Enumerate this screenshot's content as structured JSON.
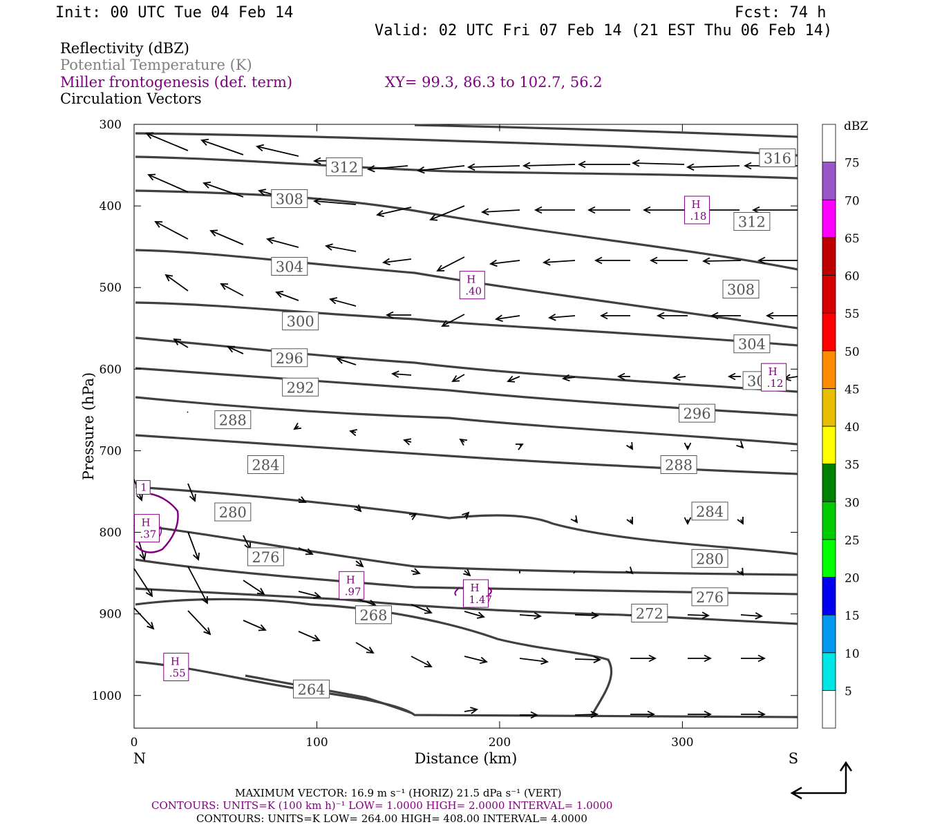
{
  "header": {
    "init": "Init: 00 UTC Tue 04 Feb 14",
    "fcst": "Fcst:   74 h",
    "valid": "Valid: 02 UTC Fri 07 Feb 14 (21 EST Thu 06 Feb 14)"
  },
  "fields": {
    "reflectivity": "Reflectivity (dBZ)",
    "theta": "Potential Temperature (K)",
    "miller": "Miller frontogenesis (def. term)",
    "xy": "XY=  99.3, 86.3 to 102.7, 56.2",
    "vectors": "Circulation Vectors"
  },
  "colors": {
    "theta": "#404040",
    "miller": "#800080",
    "vectors": "#000000"
  },
  "chart_data": {
    "type": "cross-section",
    "xlabel": "Distance (km)",
    "ylabel": "Pressure (hPa)",
    "xlim": [
      0,
      363
    ],
    "ylim": [
      1040,
      300
    ],
    "x_ticks": [
      0,
      100,
      200,
      300
    ],
    "y_ticks": [
      300,
      400,
      500,
      600,
      700,
      800,
      900,
      1000
    ],
    "left_end": "N",
    "right_end": "S",
    "theta_contours": [
      {
        "value": 316,
        "label_at": [
          352,
          341
        ]
      },
      {
        "value": 312,
        "label_at": [
          115,
          352
        ],
        "label2_at": [
          338,
          419
        ]
      },
      {
        "value": 308,
        "label_at": [
          85,
          391
        ],
        "label2_at": [
          332,
          502
        ]
      },
      {
        "value": 304,
        "label_at": [
          85,
          474
        ],
        "label2_at": [
          338,
          569
        ]
      },
      {
        "value": 300,
        "label_at": [
          91,
          541
        ],
        "label2_at": [
          343,
          614
        ]
      },
      {
        "value": 296,
        "label_at": [
          85,
          586
        ],
        "label2_at": [
          308,
          654
        ]
      },
      {
        "value": 292,
        "label_at": [
          91,
          622
        ]
      },
      {
        "value": 288,
        "label_at": [
          54,
          662
        ],
        "label2_at": [
          298,
          717
        ]
      },
      {
        "value": 284,
        "label_at": [
          72,
          717
        ],
        "label2_at": [
          315,
          774
        ]
      },
      {
        "value": 280,
        "label_at": [
          54,
          775
        ],
        "label2_at": [
          315,
          832
        ]
      },
      {
        "value": 276,
        "label_at": [
          72,
          830
        ],
        "label2_at": [
          315,
          879
        ]
      },
      {
        "value": 272,
        "label_at": [
          282,
          899
        ]
      },
      {
        "value": 268,
        "label_at": [
          131,
          901
        ]
      },
      {
        "value": 264,
        "label_at": [
          97,
          992
        ]
      }
    ],
    "frontogenesis_maxima": [
      {
        "label": "H",
        "value": ".18",
        "x": 308,
        "p": 405
      },
      {
        "label": "H",
        "value": ".40",
        "x": 185,
        "p": 497
      },
      {
        "label": "H",
        "value": ".12",
        "x": 350,
        "p": 610
      },
      {
        "label": "H",
        "value": ".37",
        "x": 7,
        "p": 795
      },
      {
        "label": "H",
        "value": ".97",
        "x": 119,
        "p": 865
      },
      {
        "label": "H",
        "value": "1.47",
        "x": 187,
        "p": 875
      },
      {
        "label": "H",
        "value": ".55",
        "x": 23,
        "p": 965
      },
      {
        "label": "",
        "value": "1",
        "x": 5,
        "p": 745
      }
    ],
    "colorbar": {
      "unit": "dBZ",
      "levels": [
        "5",
        "10",
        "15",
        "20",
        "25",
        "30",
        "35",
        "40",
        "45",
        "50",
        "55",
        "60",
        "65",
        "70",
        "75"
      ],
      "colors": [
        "#ffffff",
        "#00e5e5",
        "#0099ee",
        "#0000ee",
        "#00ff00",
        "#00cc00",
        "#008000",
        "#ffff00",
        "#e5bf00",
        "#ff8c00",
        "#ff0000",
        "#d50000",
        "#c00000",
        "#ff00ff",
        "#9955c9",
        "#ffffff"
      ]
    }
  },
  "footer": {
    "max_vector": "MAXIMUM VECTOR:  16.9 m s⁻¹ (HORIZ)         21.5 dPa s⁻¹ (VERT)",
    "contours1": "CONTOURS:  UNITS=K (100 km h)⁻¹  LOW=   1.0000        HIGH=  2.0000        INTERVAL=    1.0000",
    "contours2": "CONTOURS:  UNITS=K  LOW=  264.00         HIGH=  408.00         INTERVAL=    4.0000"
  }
}
